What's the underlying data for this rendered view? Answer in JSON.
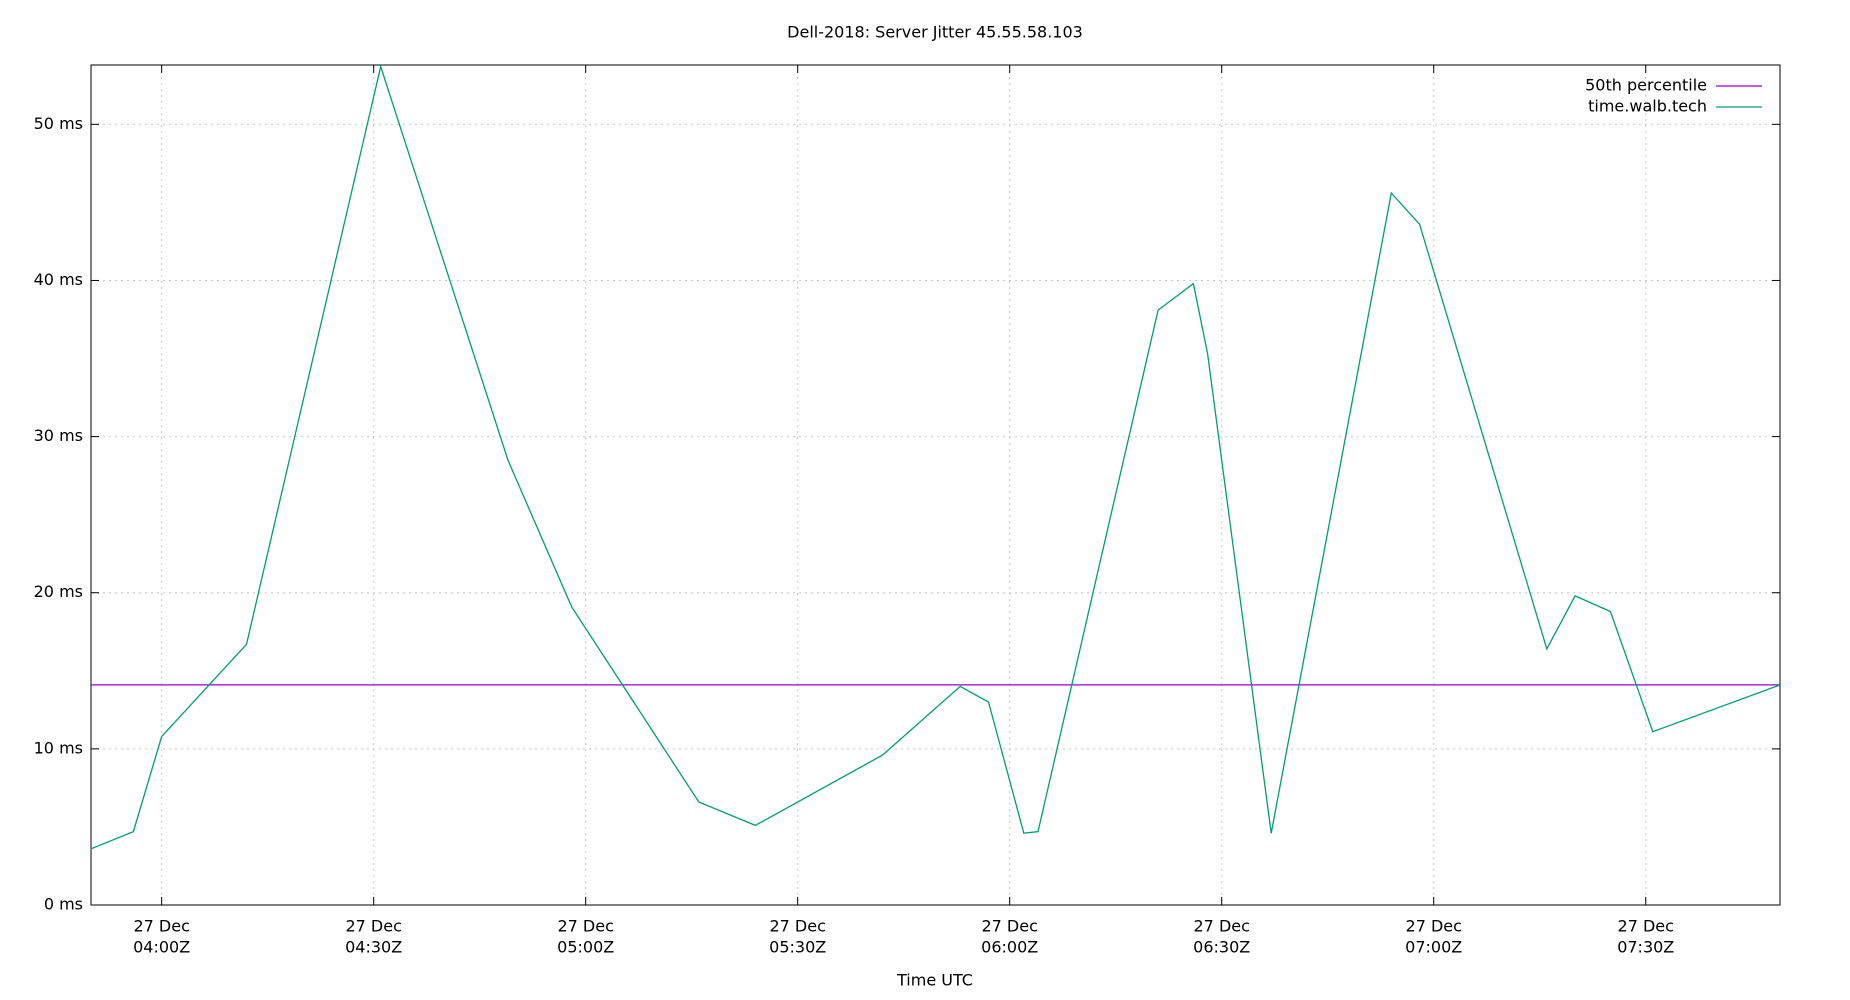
{
  "chart_data": {
    "type": "line",
    "title": "Dell-2018: Server Jitter 45.55.58.103",
    "xlabel": "Time UTC",
    "x": [
      "03:50",
      "03:56",
      "04:00",
      "04:12",
      "04:31",
      "04:49",
      "04:58",
      "05:16",
      "05:24",
      "05:42",
      "05:53",
      "05:57",
      "06:02",
      "06:04",
      "06:21",
      "06:26",
      "06:28",
      "06:37",
      "06:54",
      "06:58",
      "07:16",
      "07:20",
      "07:25",
      "07:31",
      "07:49"
    ],
    "series": [
      {
        "name": "time.walb.tech",
        "color": "#009e73",
        "values": [
          3.6,
          4.7,
          10.8,
          16.7,
          53.7,
          28.5,
          19.1,
          6.6,
          5.1,
          9.6,
          14.0,
          13.0,
          4.6,
          4.7,
          38.1,
          39.8,
          35.3,
          4.6,
          45.6,
          43.6,
          16.4,
          19.8,
          18.8,
          11.1,
          14.1
        ]
      }
    ],
    "reference_line": {
      "name": "50th percentile",
      "color": "#9400d3",
      "value": 14.1
    },
    "xlim": [
      "03:50",
      "07:49"
    ],
    "xticks": [
      {
        "value": "04:00",
        "label": [
          "27 Dec",
          "04:00Z"
        ]
      },
      {
        "value": "04:30",
        "label": [
          "27 Dec",
          "04:30Z"
        ]
      },
      {
        "value": "05:00",
        "label": [
          "27 Dec",
          "05:00Z"
        ]
      },
      {
        "value": "05:30",
        "label": [
          "27 Dec",
          "05:30Z"
        ]
      },
      {
        "value": "06:00",
        "label": [
          "27 Dec",
          "06:00Z"
        ]
      },
      {
        "value": "06:30",
        "label": [
          "27 Dec",
          "06:30Z"
        ]
      },
      {
        "value": "07:00",
        "label": [
          "27 Dec",
          "07:00Z"
        ]
      },
      {
        "value": "07:30",
        "label": [
          "27 Dec",
          "07:30Z"
        ]
      }
    ],
    "ylim": [
      0,
      53.8
    ],
    "yticks": [
      {
        "value": 0,
        "label": "0 ms"
      },
      {
        "value": 10,
        "label": "10 ms"
      },
      {
        "value": 20,
        "label": "20 ms"
      },
      {
        "value": 30,
        "label": "30 ms"
      },
      {
        "value": 40,
        "label": "40 ms"
      },
      {
        "value": 50,
        "label": "50 ms"
      }
    ],
    "grid": true,
    "legend": "top-right"
  }
}
